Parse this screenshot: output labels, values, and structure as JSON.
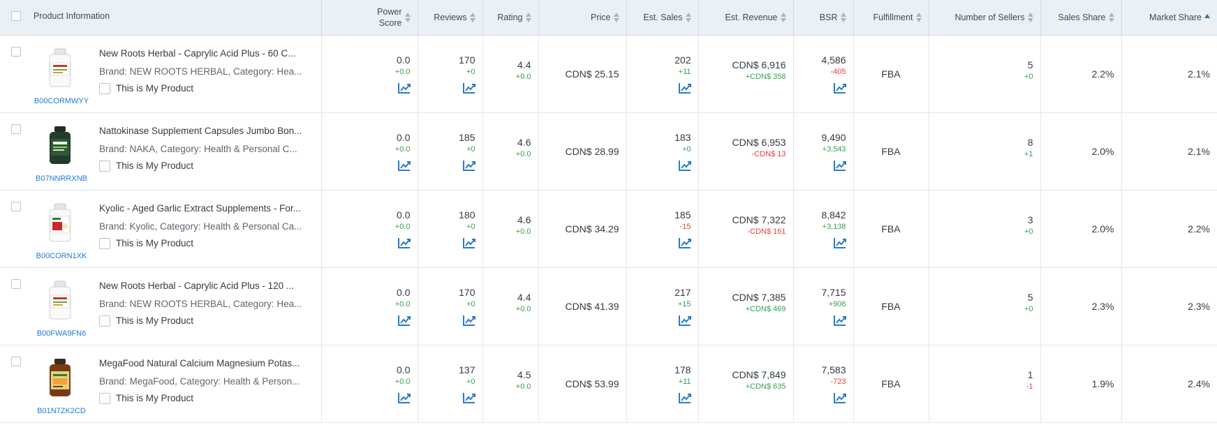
{
  "headers": {
    "product": "Product Information",
    "power_score": "Power Score",
    "reviews": "Reviews",
    "rating": "Rating",
    "price": "Price",
    "est_sales": "Est. Sales",
    "est_revenue": "Est. Revenue",
    "bsr": "BSR",
    "fulfillment": "Fulfillment",
    "sellers": "Number of Sellers",
    "sales_share": "Sales Share",
    "market_share": "Market Share"
  },
  "colors": {
    "positive": "#33a14b",
    "negative": "#e2413b",
    "link": "#1e7bd6"
  },
  "rows": [
    {
      "asin": "B00CORMWYY",
      "title": "New Roots Herbal - Caprylic Acid Plus - 60 C...",
      "brand_line": "Brand: NEW ROOTS HERBAL,   Category: Hea...",
      "my_product": "This is My Product",
      "thumb": "white-bottle",
      "power_score": "0.0",
      "power_score_delta": "+0.0",
      "reviews": "170",
      "reviews_delta": "+0",
      "rating": "4.4",
      "rating_delta": "+0.0",
      "price": "CDN$ 25.15",
      "est_sales": "202",
      "est_sales_delta": "+11",
      "est_revenue": "CDN$ 6,916",
      "est_revenue_delta": "+CDN$ 358",
      "bsr": "4,586",
      "bsr_delta": "-405",
      "fulfillment": "FBA",
      "sellers": "5",
      "sellers_delta": "+0",
      "sales_share": "2.2%",
      "market_share": "2.1%"
    },
    {
      "asin": "B07NNRRXNB",
      "title": "Nattokinase Supplement Capsules Jumbo Bon...",
      "brand_line": "Brand: NAKA,   Category: Health & Personal C...",
      "my_product": "This is My Product",
      "thumb": "dark-green-bottle",
      "power_score": "0.0",
      "power_score_delta": "+0.0",
      "reviews": "185",
      "reviews_delta": "+0",
      "rating": "4.6",
      "rating_delta": "+0.0",
      "price": "CDN$ 28.99",
      "est_sales": "183",
      "est_sales_delta": "+0",
      "est_revenue": "CDN$ 6,953",
      "est_revenue_delta": "-CDN$ 13",
      "bsr": "9,490",
      "bsr_delta": "+3,543",
      "fulfillment": "FBA",
      "sellers": "8",
      "sellers_delta": "+1",
      "sales_share": "2.0%",
      "market_share": "2.1%"
    },
    {
      "asin": "B00CORN1XK",
      "title": "Kyolic - Aged Garlic Extract Supplements - For...",
      "brand_line": "Brand: Kyolic,   Category: Health & Personal Ca...",
      "my_product": "This is My Product",
      "thumb": "white-bottle-label",
      "power_score": "0.0",
      "power_score_delta": "+0.0",
      "reviews": "180",
      "reviews_delta": "+0",
      "rating": "4.6",
      "rating_delta": "+0.0",
      "price": "CDN$ 34.29",
      "est_sales": "185",
      "est_sales_delta": "-15",
      "est_revenue": "CDN$ 7,322",
      "est_revenue_delta": "-CDN$ 161",
      "bsr": "8,842",
      "bsr_delta": "+3,138",
      "fulfillment": "FBA",
      "sellers": "3",
      "sellers_delta": "+0",
      "sales_share": "2.0%",
      "market_share": "2.2%"
    },
    {
      "asin": "B00FWA9FN6",
      "title": "New Roots Herbal - Caprylic Acid Plus - 120 ...",
      "brand_line": "Brand: NEW ROOTS HERBAL,   Category: Hea...",
      "my_product": "This is My Product",
      "thumb": "white-bottle",
      "power_score": "0.0",
      "power_score_delta": "+0.0",
      "reviews": "170",
      "reviews_delta": "+0",
      "rating": "4.4",
      "rating_delta": "+0.0",
      "price": "CDN$ 41.39",
      "est_sales": "217",
      "est_sales_delta": "+15",
      "est_revenue": "CDN$ 7,385",
      "est_revenue_delta": "+CDN$ 469",
      "bsr": "7,715",
      "bsr_delta": "+906",
      "fulfillment": "FBA",
      "sellers": "5",
      "sellers_delta": "+0",
      "sales_share": "2.3%",
      "market_share": "2.3%"
    },
    {
      "asin": "B01N7ZK2CD",
      "title": "MegaFood Natural Calcium Magnesium Potas...",
      "brand_line": "Brand: MegaFood,   Category: Health & Person...",
      "my_product": "This is My Product",
      "thumb": "amber-bottle",
      "power_score": "0.0",
      "power_score_delta": "+0.0",
      "reviews": "137",
      "reviews_delta": "+0",
      "rating": "4.5",
      "rating_delta": "+0.0",
      "price": "CDN$ 53.99",
      "est_sales": "178",
      "est_sales_delta": "+11",
      "est_revenue": "CDN$ 7,849",
      "est_revenue_delta": "+CDN$ 635",
      "bsr": "7,583",
      "bsr_delta": "-723",
      "fulfillment": "FBA",
      "sellers": "1",
      "sellers_delta": "-1",
      "sales_share": "1.9%",
      "market_share": "2.4%"
    }
  ]
}
